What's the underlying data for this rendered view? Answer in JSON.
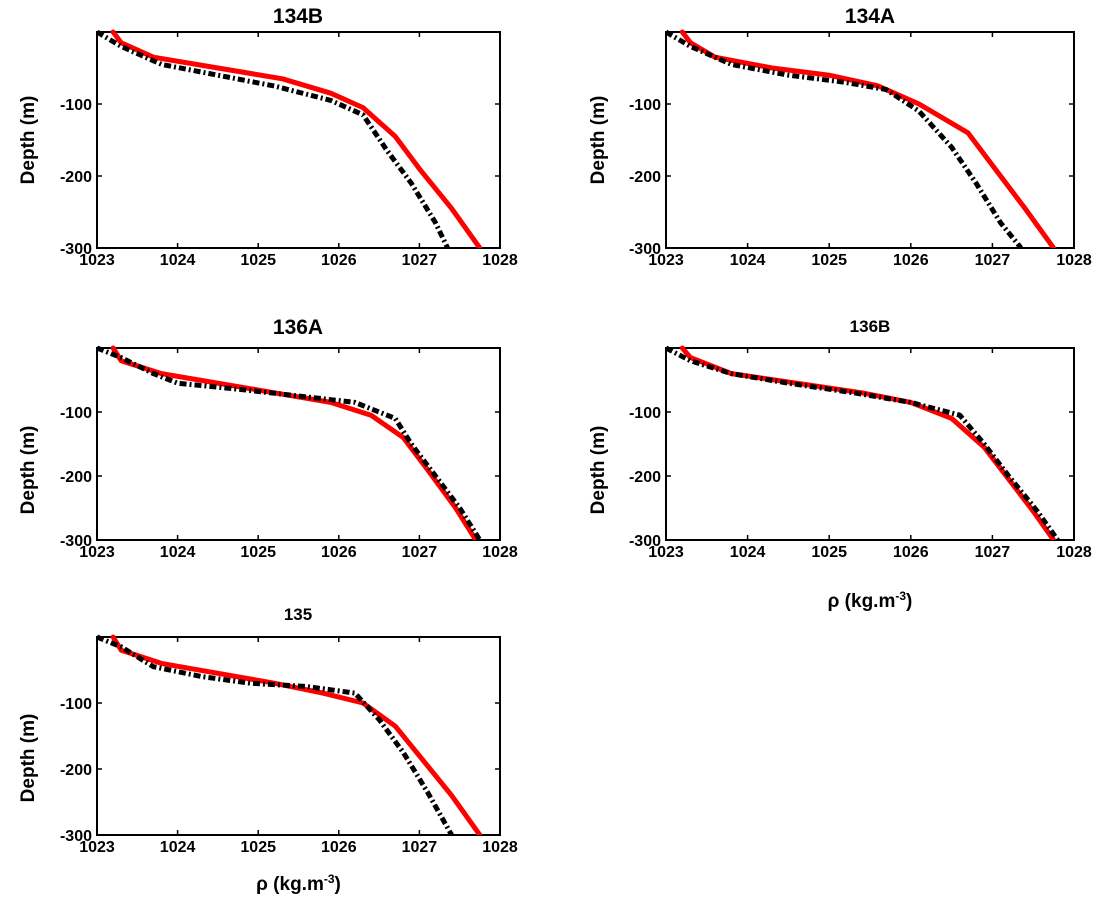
{
  "figure": {
    "ylabel": "Depth (m)",
    "xlabel_base": "ρ (kg.m",
    "xlabel_exp": "-3",
    "xlabel_close": ")"
  },
  "chart_data": [
    {
      "type": "line",
      "title": "134B",
      "xlabel": "",
      "ylabel": "Depth (m)",
      "xlim": [
        1023,
        1028
      ],
      "ylim": [
        -300,
        0
      ],
      "xticks": [
        "1023",
        "1024",
        "1025",
        "1026",
        "1027",
        "1028"
      ],
      "yticks": [
        "-100",
        "-200",
        "-300"
      ],
      "series": [
        {
          "color": "#ff0000",
          "x": [
            1023.2,
            1023.3,
            1023.7,
            1024.5,
            1025.3,
            1025.9,
            1026.3,
            1026.7,
            1027.0,
            1027.4,
            1027.75
          ],
          "y": [
            0,
            -15,
            -35,
            -50,
            -65,
            -85,
            -105,
            -145,
            -190,
            -245,
            -300
          ]
        },
        {
          "color": "#000000",
          "x": [
            1023.0,
            1023.3,
            1023.8,
            1024.5,
            1025.2,
            1025.9,
            1026.3,
            1026.6,
            1026.9,
            1027.2,
            1027.35
          ],
          "y": [
            0,
            -20,
            -45,
            -60,
            -75,
            -95,
            -115,
            -165,
            -210,
            -265,
            -300
          ]
        }
      ]
    },
    {
      "type": "line",
      "title": "134A",
      "xlabel": "",
      "ylabel": "Depth (m)",
      "xlim": [
        1023,
        1028
      ],
      "ylim": [
        -300,
        0
      ],
      "xticks": [
        "1023",
        "1024",
        "1025",
        "1026",
        "1027",
        "1028"
      ],
      "yticks": [
        "-100",
        "-200",
        "-300"
      ],
      "series": [
        {
          "color": "#ff0000",
          "x": [
            1023.2,
            1023.3,
            1023.6,
            1024.3,
            1025.0,
            1025.6,
            1026.1,
            1026.7,
            1027.0,
            1027.4,
            1027.75
          ],
          "y": [
            0,
            -15,
            -35,
            -50,
            -60,
            -75,
            -100,
            -140,
            -185,
            -245,
            -300
          ]
        },
        {
          "color": "#000000",
          "x": [
            1023.0,
            1023.3,
            1023.8,
            1024.5,
            1025.2,
            1025.7,
            1026.1,
            1026.5,
            1026.8,
            1027.1,
            1027.35
          ],
          "y": [
            0,
            -20,
            -45,
            -60,
            -70,
            -80,
            -110,
            -160,
            -210,
            -265,
            -300
          ]
        }
      ]
    },
    {
      "type": "line",
      "title": "136A",
      "xlabel": "",
      "ylabel": "Depth (m)",
      "xlim": [
        1023,
        1028
      ],
      "ylim": [
        -300,
        0
      ],
      "xticks": [
        "1023",
        "1024",
        "1025",
        "1026",
        "1027",
        "1028"
      ],
      "yticks": [
        "-100",
        "-200",
        "-300"
      ],
      "series": [
        {
          "color": "#ff0000",
          "x": [
            1023.2,
            1023.3,
            1023.8,
            1024.5,
            1025.2,
            1025.9,
            1026.4,
            1026.8,
            1027.1,
            1027.45,
            1027.7
          ],
          "y": [
            0,
            -20,
            -40,
            -55,
            -70,
            -85,
            -105,
            -140,
            -190,
            -250,
            -300
          ]
        },
        {
          "color": "#000000",
          "x": [
            1023.0,
            1023.3,
            1023.7,
            1024.0,
            1024.8,
            1025.5,
            1026.2,
            1026.7,
            1026.9,
            1027.2,
            1027.5,
            1027.75
          ],
          "y": [
            0,
            -15,
            -40,
            -55,
            -65,
            -75,
            -85,
            -110,
            -150,
            -200,
            -250,
            -300
          ]
        }
      ]
    },
    {
      "type": "line",
      "title": "136B",
      "xlabel": "ρ (kg.m-3)",
      "ylabel": "Depth (m)",
      "xlim": [
        1023,
        1028
      ],
      "ylim": [
        -300,
        0
      ],
      "xticks": [
        "1023",
        "1024",
        "1025",
        "1026",
        "1027",
        "1028"
      ],
      "yticks": [
        "-100",
        "-200",
        "-300"
      ],
      "series": [
        {
          "color": "#ff0000",
          "x": [
            1023.2,
            1023.3,
            1023.8,
            1024.6,
            1025.4,
            1026.0,
            1026.5,
            1026.9,
            1027.2,
            1027.5,
            1027.75
          ],
          "y": [
            0,
            -15,
            -40,
            -55,
            -70,
            -85,
            -110,
            -155,
            -205,
            -255,
            -300
          ]
        },
        {
          "color": "#000000",
          "x": [
            1023.0,
            1023.3,
            1023.8,
            1024.5,
            1025.3,
            1026.0,
            1026.6,
            1026.9,
            1027.2,
            1027.55,
            1027.8
          ],
          "y": [
            0,
            -20,
            -40,
            -55,
            -70,
            -85,
            -105,
            -150,
            -200,
            -255,
            -300
          ]
        }
      ]
    },
    {
      "type": "line",
      "title": "135",
      "xlabel": "ρ (kg.m-3)",
      "ylabel": "Depth (m)",
      "xlim": [
        1023,
        1028
      ],
      "ylim": [
        -300,
        0
      ],
      "xticks": [
        "1023",
        "1024",
        "1025",
        "1026",
        "1027",
        "1028"
      ],
      "yticks": [
        "-100",
        "-200",
        "-300"
      ],
      "series": [
        {
          "color": "#ff0000",
          "x": [
            1023.2,
            1023.3,
            1023.8,
            1024.5,
            1025.2,
            1025.8,
            1026.3,
            1026.7,
            1027.0,
            1027.4,
            1027.75
          ],
          "y": [
            0,
            -20,
            -40,
            -55,
            -70,
            -85,
            -100,
            -135,
            -180,
            -240,
            -300
          ]
        },
        {
          "color": "#000000",
          "x": [
            1023.0,
            1023.3,
            1023.7,
            1024.3,
            1024.9,
            1025.6,
            1026.2,
            1026.5,
            1026.8,
            1027.1,
            1027.4
          ],
          "y": [
            0,
            -15,
            -45,
            -60,
            -70,
            -75,
            -85,
            -125,
            -175,
            -235,
            -300
          ]
        }
      ]
    }
  ]
}
